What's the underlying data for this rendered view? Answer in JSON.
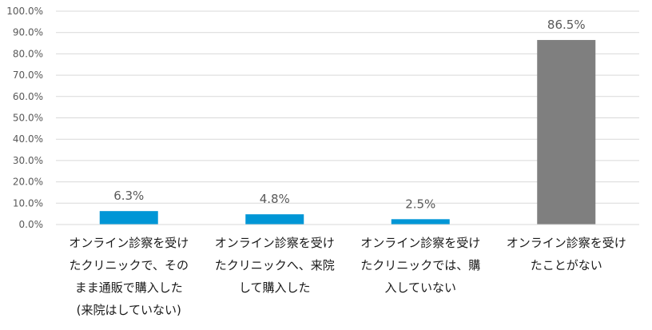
{
  "chart_data": {
    "type": "bar",
    "title": "",
    "xlabel": "",
    "ylabel": "",
    "ylim": [
      0,
      100
    ],
    "ytick_step": 10,
    "ytick_format": "percent_1dp",
    "grid": true,
    "categories": [
      "オンライン診察を受けたクリニックで、そのまま通販で購入した(来院はしていない)",
      "オンライン診察を受けたクリニックへ、来院して購入した",
      "オンライン診察を受けたクリニックでは、購入していない",
      "オンライン診察を受けたことがない"
    ],
    "category_lines": [
      [
        "オンライン診察を受け",
        "たクリニックで、その",
        "まま通販で購入した",
        "(来院はしていない)"
      ],
      [
        "オンライン診察を受け",
        "たクリニックへ、来院",
        "して購入した"
      ],
      [
        "オンライン診察を受け",
        "たクリニックでは、購",
        "入していない"
      ],
      [
        "オンライン診察を受け",
        "たことがない"
      ]
    ],
    "values": [
      6.3,
      4.8,
      2.5,
      86.5
    ],
    "value_labels": [
      "6.3%",
      "4.8%",
      "2.5%",
      "86.5%"
    ],
    "bar_colors": [
      "#0096d6",
      "#0096d6",
      "#0096d6",
      "#7f7f7f"
    ]
  }
}
